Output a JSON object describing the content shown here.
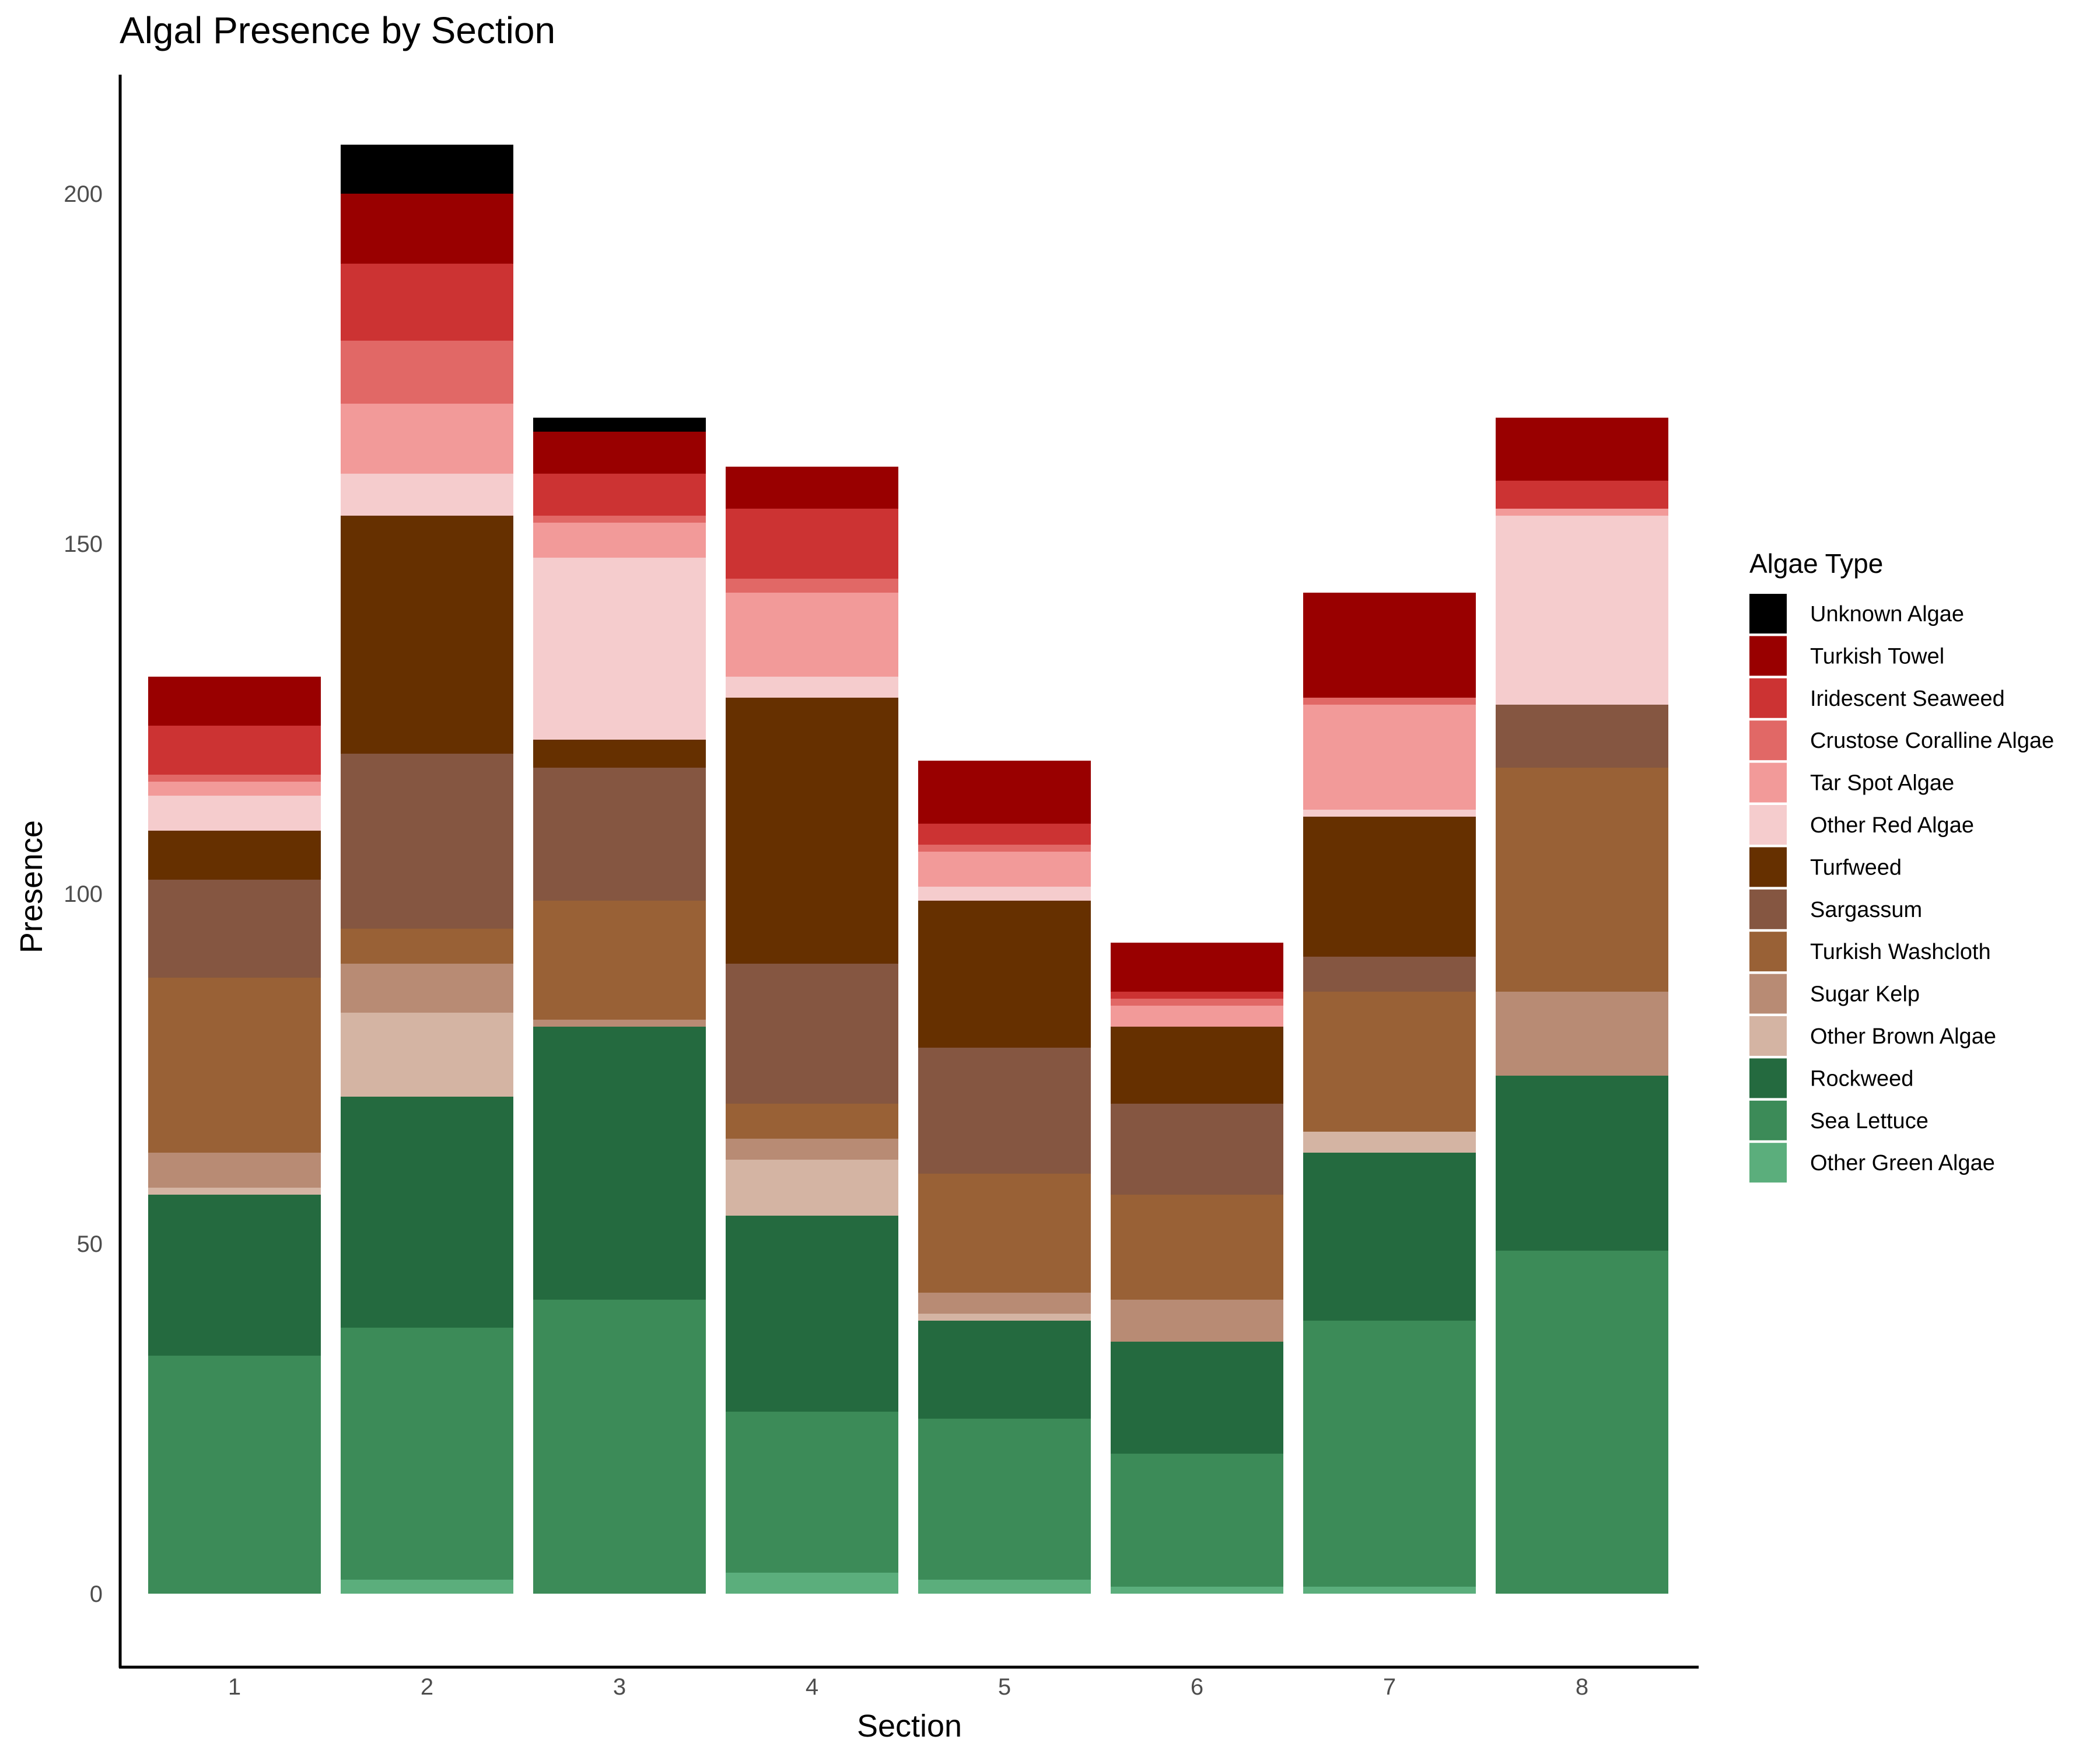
{
  "chart_data": {
    "type": "bar",
    "stacked": true,
    "title": "Algal Presence by Section",
    "xlabel": "Section",
    "ylabel": "Presence",
    "categories": [
      "1",
      "2",
      "3",
      "4",
      "5",
      "6",
      "7",
      "8"
    ],
    "ylim": [
      -10.5,
      217
    ],
    "yticks": [
      0,
      50,
      100,
      150,
      200
    ],
    "grid": false,
    "legend": {
      "title": "Algae Type",
      "position": "right"
    },
    "series": [
      {
        "name": "Other Green Algae",
        "color": "#5BAE7C",
        "values": [
          0,
          2,
          0,
          3,
          2,
          1,
          1,
          0
        ]
      },
      {
        "name": "Sea Lettuce",
        "color": "#3C8B58",
        "values": [
          34,
          36,
          42,
          23,
          23,
          19,
          38,
          49
        ]
      },
      {
        "name": "Rockweed",
        "color": "#246A3F",
        "values": [
          23,
          33,
          39,
          28,
          14,
          16,
          24,
          25
        ]
      },
      {
        "name": "Other Brown Algae",
        "color": "#D4B4A3",
        "values": [
          1,
          12,
          0,
          8,
          1,
          0,
          3,
          0
        ]
      },
      {
        "name": "Sugar Kelp",
        "color": "#B88B74",
        "values": [
          5,
          7,
          1,
          3,
          3,
          6,
          0,
          12
        ]
      },
      {
        "name": "Turkish Washcloth",
        "color": "#996136",
        "values": [
          25,
          5,
          17,
          5,
          17,
          15,
          20,
          32
        ]
      },
      {
        "name": "Sargassum",
        "color": "#855641",
        "values": [
          14,
          25,
          19,
          20,
          18,
          13,
          5,
          9
        ]
      },
      {
        "name": "Turfweed",
        "color": "#663000",
        "values": [
          7,
          34,
          4,
          38,
          21,
          11,
          20,
          0
        ]
      },
      {
        "name": "Other Red Algae",
        "color": "#F5CCCD",
        "values": [
          5,
          6,
          26,
          3,
          2,
          0,
          1,
          27
        ]
      },
      {
        "name": "Tar Spot Algae",
        "color": "#F29A99",
        "values": [
          2,
          10,
          5,
          12,
          5,
          3,
          15,
          1
        ]
      },
      {
        "name": "Crustose Coralline Algae",
        "color": "#E16866",
        "values": [
          1,
          9,
          1,
          2,
          1,
          1,
          1,
          0
        ]
      },
      {
        "name": "Iridescent Seaweed",
        "color": "#CC3333",
        "values": [
          7,
          11,
          6,
          10,
          3,
          1,
          0,
          4
        ]
      },
      {
        "name": "Turkish Towel",
        "color": "#990000",
        "values": [
          7,
          10,
          6,
          6,
          9,
          7,
          15,
          9
        ]
      },
      {
        "name": "Unknown Algae",
        "color": "#000000",
        "values": [
          0,
          7,
          2,
          0,
          0,
          0,
          0,
          0
        ]
      }
    ]
  }
}
